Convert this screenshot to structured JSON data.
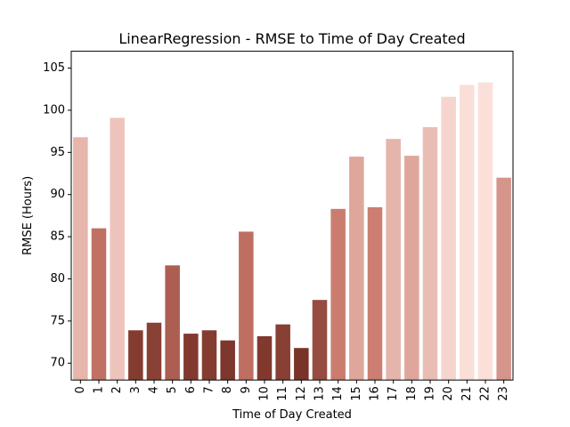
{
  "chart_data": {
    "type": "bar",
    "title": "LinearRegression - RMSE to Time of Day Created",
    "xlabel": "Time of Day Created",
    "ylabel": "RMSE (Hours)",
    "categories": [
      "0",
      "1",
      "2",
      "3",
      "4",
      "5",
      "6",
      "7",
      "8",
      "9",
      "10",
      "11",
      "12",
      "13",
      "14",
      "15",
      "16",
      "17",
      "18",
      "19",
      "20",
      "21",
      "22",
      "23"
    ],
    "values": [
      96.8,
      86.0,
      99.1,
      73.9,
      74.8,
      81.6,
      73.5,
      73.9,
      72.7,
      85.6,
      73.2,
      74.6,
      71.8,
      77.5,
      88.3,
      94.5,
      88.5,
      96.6,
      94.6,
      98.0,
      101.6,
      103.0,
      103.3,
      92.0
    ],
    "ylim": [
      68,
      107
    ],
    "yticks": [
      70,
      75,
      80,
      85,
      90,
      95,
      100,
      105
    ],
    "grid": false,
    "legend": "none",
    "colors": {
      "low": "#7a3328",
      "mid": "#c8786a",
      "high": "#fbe0da"
    }
  }
}
